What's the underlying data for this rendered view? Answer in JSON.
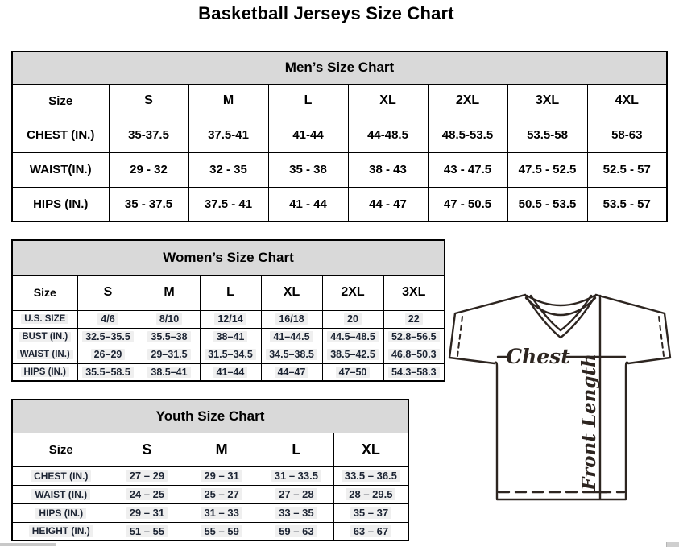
{
  "page": {
    "title": "Basketball Jerseys Size Chart"
  },
  "colors": {
    "table_header_bg": "#d9d9d9",
    "table_border": "#000000",
    "mens_text": "#000000",
    "womens_youth_values": "#1c2433",
    "value_highlight": "#efefef",
    "diagram_lines": "#2d2520",
    "scrollbar_gray": "#c8c8c8"
  },
  "tables": {
    "men": {
      "title": "Men’s Size Chart",
      "columns": [
        "Size",
        "S",
        "M",
        "L",
        "XL",
        "2XL",
        "3XL",
        "4XL"
      ],
      "rows": [
        {
          "label": "CHEST (IN.)",
          "values": [
            "35-37.5",
            "37.5-41",
            "41-44",
            "44-48.5",
            "48.5-53.5",
            "53.5-58",
            "58-63"
          ]
        },
        {
          "label": "WAIST(IN.)",
          "values": [
            "29 - 32",
            "32 - 35",
            "35 - 38",
            "38 - 43",
            "43 - 47.5",
            "47.5 - 52.5",
            "52.5 - 57"
          ]
        },
        {
          "label": "HIPS (IN.)",
          "values": [
            "35 - 37.5",
            "37.5 - 41",
            "41 - 44",
            "44 - 47",
            "47 - 50.5",
            "50.5 - 53.5",
            "53.5 - 57"
          ]
        }
      ]
    },
    "women": {
      "title": "Women’s Size Chart",
      "columns": [
        "Size",
        "S",
        "M",
        "L",
        "XL",
        "2XL",
        "3XL"
      ],
      "rows": [
        {
          "label": "U.S. SIZE",
          "values": [
            "4/6",
            "8/10",
            "12/14",
            "16/18",
            "20",
            "22"
          ]
        },
        {
          "label": "BUST (IN.)",
          "values": [
            "32.5–35.5",
            "35.5–38",
            "38–41",
            "41–44.5",
            "44.5–48.5",
            "52.8–56.5"
          ]
        },
        {
          "label": "WAIST (IN.)",
          "values": [
            "26–29",
            "29–31.5",
            "31.5–34.5",
            "34.5–38.5",
            "38.5–42.5",
            "46.8–50.3"
          ]
        },
        {
          "label": "HIPS (IN.)",
          "values": [
            "35.5–58.5",
            "38.5–41",
            "41–44",
            "44–47",
            "47–50",
            "54.3–58.3"
          ]
        }
      ]
    },
    "youth": {
      "title": "Youth Size Chart",
      "columns": [
        "Size",
        "S",
        "M",
        "L",
        "XL"
      ],
      "rows": [
        {
          "label": "CHEST (IN.)",
          "values": [
            "27 – 29",
            "29 – 31",
            "31 – 33.5",
            "33.5 – 36.5"
          ]
        },
        {
          "label": "WAIST (IN.)",
          "values": [
            "24 – 25",
            "25 – 27",
            "27 – 28",
            "28 – 29.5"
          ]
        },
        {
          "label": "HIPS (IN.)",
          "values": [
            "29 – 31",
            "31 – 33",
            "33 – 35",
            "35 – 37"
          ]
        },
        {
          "label": "HEIGHT (IN.)",
          "values": [
            "51 – 55",
            "55 – 59",
            "59 – 63",
            "63 – 67"
          ]
        }
      ]
    }
  },
  "diagram": {
    "chest_label": "Chest",
    "front_length_label": "Front Length"
  }
}
